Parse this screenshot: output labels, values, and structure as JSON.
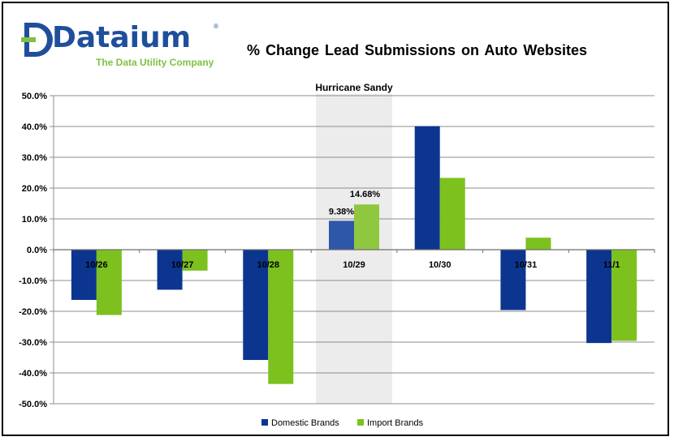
{
  "logo": {
    "name": "Dataium",
    "tagline": "The Data Utility Company",
    "brand_color": "#1f4e9c",
    "accent_color": "#7dc242"
  },
  "chart_data": {
    "type": "bar",
    "title": "% Change  Lead Submissions  on  Auto Websites",
    "categories": [
      "10/26",
      "10/27",
      "10/28",
      "10/29",
      "10/30",
      "10/31",
      "11/1"
    ],
    "series": [
      {
        "name": "Domestic Brands",
        "color": "#0c3590",
        "values": [
          -16.3,
          -13.0,
          -35.8,
          9.38,
          40.1,
          -19.6,
          -30.3
        ]
      },
      {
        "name": "Import Brands",
        "color": "#7cc11e",
        "values": [
          -21.2,
          -6.8,
          -43.6,
          14.68,
          23.3,
          3.9,
          -29.6
        ]
      }
    ],
    "ylim": [
      -50,
      50
    ],
    "ytick_step": 10,
    "ytick_format": "percent_1dp",
    "grid": true,
    "legend": "bottom-center",
    "highlight": {
      "category": "10/29",
      "label": "Hurricane Sandy",
      "color": "#ececec"
    },
    "data_labels": [
      {
        "category": "10/29",
        "series": 0,
        "text": "9.38%"
      },
      {
        "category": "10/29",
        "series": 1,
        "text": "14.68%"
      }
    ]
  }
}
